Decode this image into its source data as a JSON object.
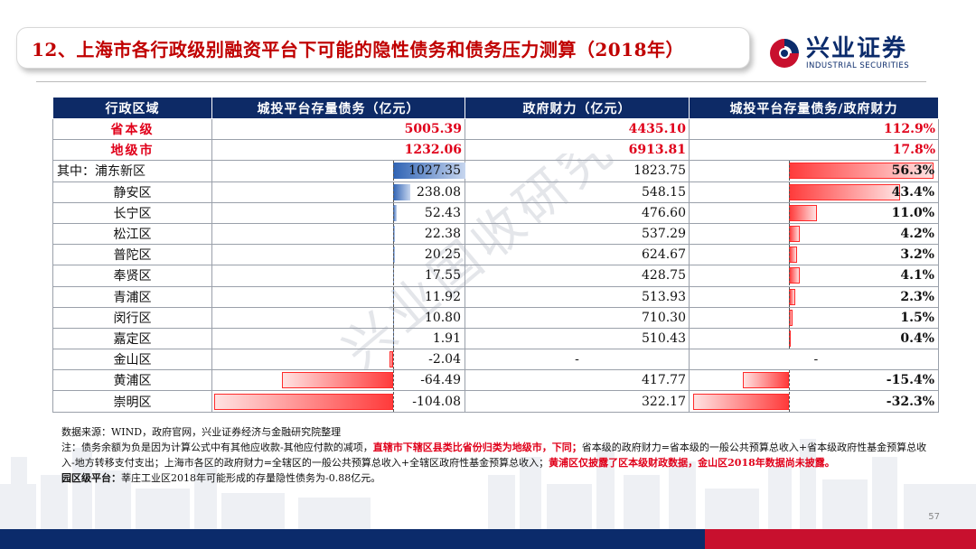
{
  "header": {
    "title": "12、上海市各行政级别融资平台下可能的隐性债务和债务压力测算（2018年）",
    "logo_cn": "兴业证券",
    "logo_en": "INDUSTRIAL SECURITIES"
  },
  "watermark": "兴业国收研究",
  "table": {
    "headers": [
      "行政区域",
      "城投平台存量债务（亿元）",
      "政府财力（亿元）",
      "城投平台存量债务/政府财力"
    ],
    "summary_rows": [
      {
        "region": "省本级",
        "debt": "5005.39",
        "fiscal": "4435.10",
        "ratio": "112.9%"
      },
      {
        "region": "地级市",
        "debt": "1232.06",
        "fiscal": "6913.81",
        "ratio": "17.8%"
      }
    ],
    "district_rows": [
      {
        "region": "其中：浦东新区",
        "debt": "1027.35",
        "debt_value": 1027.35,
        "fiscal": "1823.75",
        "ratio": "56.3%",
        "ratio_value": 56.3
      },
      {
        "region": "静安区",
        "debt": "238.08",
        "debt_value": 238.08,
        "fiscal": "548.15",
        "ratio": "43.4%",
        "ratio_value": 43.4
      },
      {
        "region": "长宁区",
        "debt": "52.43",
        "debt_value": 52.43,
        "fiscal": "476.60",
        "ratio": "11.0%",
        "ratio_value": 11.0
      },
      {
        "region": "松江区",
        "debt": "22.38",
        "debt_value": 22.38,
        "fiscal": "537.29",
        "ratio": "4.2%",
        "ratio_value": 4.2
      },
      {
        "region": "普陀区",
        "debt": "20.25",
        "debt_value": 20.25,
        "fiscal": "624.67",
        "ratio": "3.2%",
        "ratio_value": 3.2
      },
      {
        "region": "奉贤区",
        "debt": "17.55",
        "debt_value": 17.55,
        "fiscal": "428.75",
        "ratio": "4.1%",
        "ratio_value": 4.1
      },
      {
        "region": "青浦区",
        "debt": "11.92",
        "debt_value": 11.92,
        "fiscal": "513.93",
        "ratio": "2.3%",
        "ratio_value": 2.3
      },
      {
        "region": "闵行区",
        "debt": "10.80",
        "debt_value": 10.8,
        "fiscal": "710.30",
        "ratio": "1.5%",
        "ratio_value": 1.5
      },
      {
        "region": "嘉定区",
        "debt": "1.91",
        "debt_value": 1.91,
        "fiscal": "510.43",
        "ratio": "0.4%",
        "ratio_value": 0.4
      },
      {
        "region": "金山区",
        "debt": "-2.04",
        "debt_value": -2.04,
        "fiscal": "-",
        "ratio": "-",
        "ratio_value": null
      },
      {
        "region": "黄浦区",
        "debt": "-64.49",
        "debt_value": -64.49,
        "fiscal": "417.77",
        "ratio": "-15.4%",
        "ratio_value": -15.4
      },
      {
        "region": "崇明区",
        "debt": "-104.08",
        "debt_value": -104.08,
        "fiscal": "322.17",
        "ratio": "-32.3%",
        "ratio_value": -32.3
      }
    ],
    "colors": {
      "header_bg": "#0d2a66",
      "summary_text": "#e0001a",
      "debt_bar": "#2f63b4",
      "ratio_bar": "#ff3b3b"
    }
  },
  "notes": {
    "source": "数据来源：WIND，政府官网，兴业证券经济与金融研究院整理",
    "note_a": "注：债务余额为负是因为计算公式中有其他应收款-其他应付款的减项，",
    "note_b_red": "直辖市下辖区县类比省份归类为地级市，下同；",
    "note_c": "省本级的政府财力=省本级的一般公共预算总收入+省本级政府性基金预算总收入-地方转移支付支出；上海市各区的政府财力=全辖区的一般公共预算总收入+全辖区政府性基金预算总收入；",
    "note_d_red": "黄浦区仅披露了区本级财政数据，金山区2018年数据尚未披露。",
    "park_label": "园区级平台：",
    "park_text": "莘庄工业区2018年可能形成的存量隐性债务为-0.88亿元。"
  },
  "footer": {
    "page_number": "57"
  }
}
